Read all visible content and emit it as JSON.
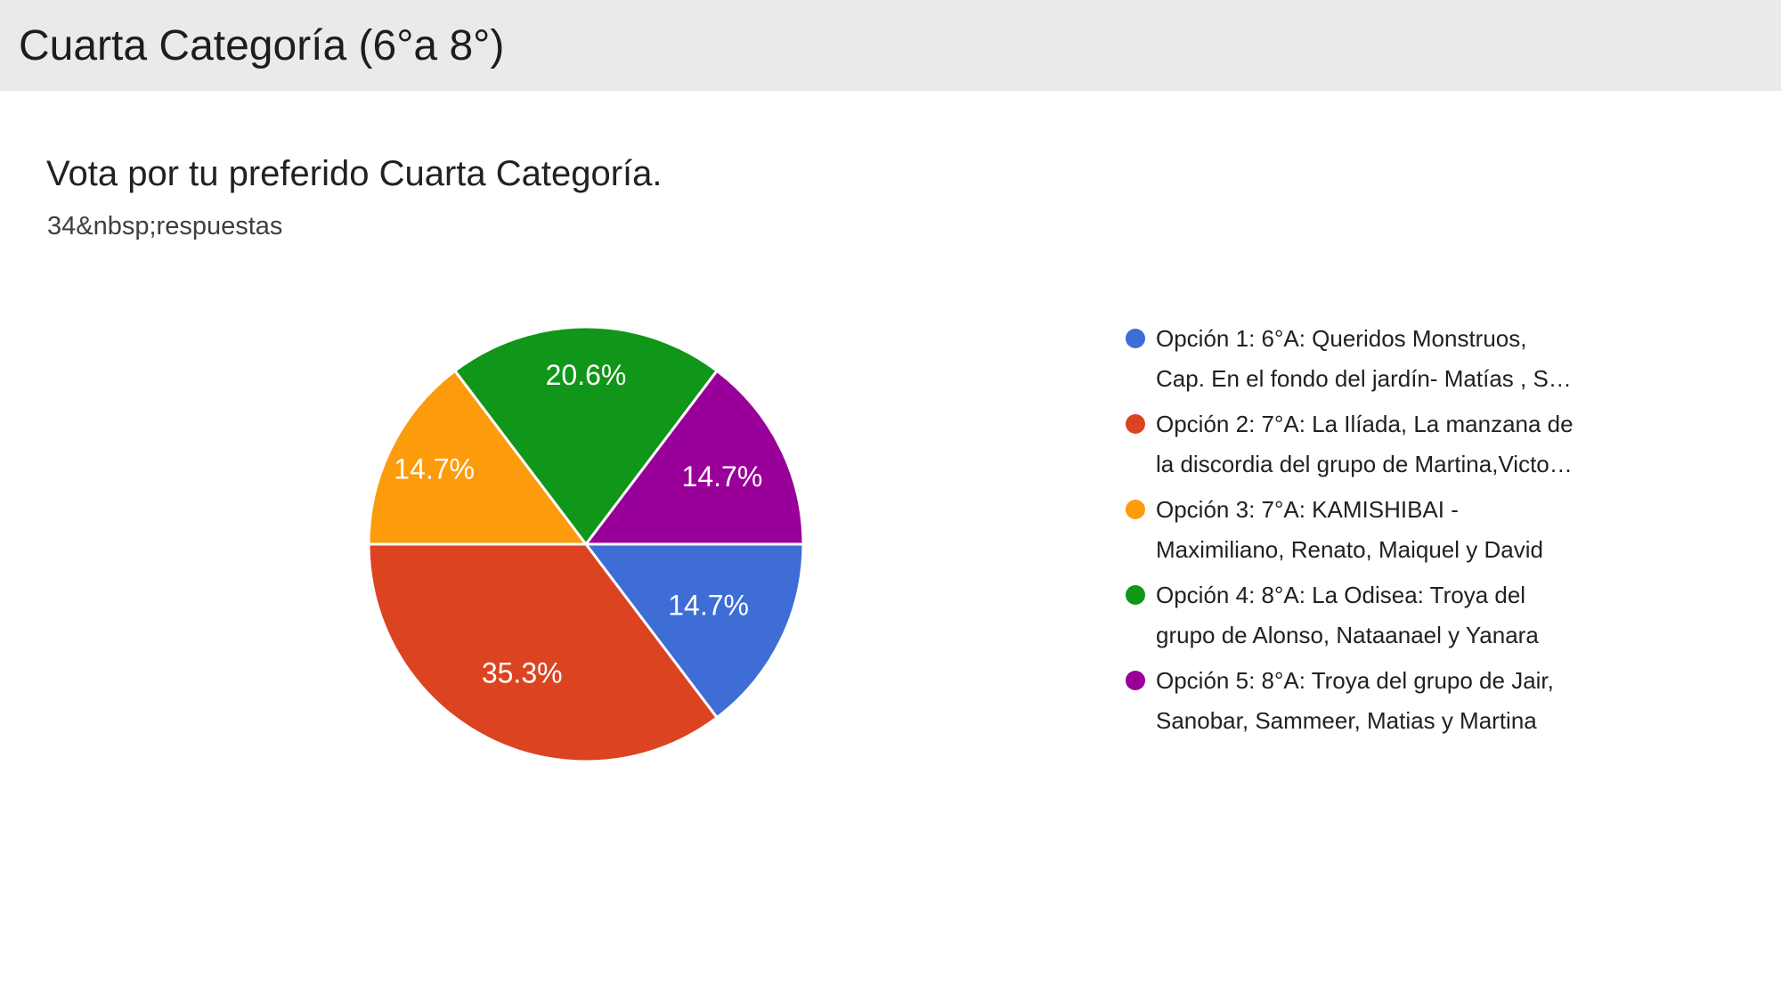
{
  "header": {
    "title": "Cuarta Categoría (6°a 8°)"
  },
  "question": {
    "title": "Vota por tu preferido Cuarta Categoría.",
    "responses_text": "34&nbsp;respuestas"
  },
  "chart_data": {
    "type": "pie",
    "title": "Vota por tu preferido Cuarta Categoría.",
    "responses_label": "34&nbsp;respuestas",
    "total_responses": 34,
    "legend_position": "right",
    "start_angle": "3-oclock, clockwise",
    "slices": [
      {
        "option": "Opción 1",
        "percent": 14.7,
        "percent_label": "14.7%",
        "color": "#3e6dd6",
        "legend_lines": [
          "Opción 1: 6°A: Queridos Monstruos,",
          "Cap. En el fondo del jardín- Matías , S…"
        ]
      },
      {
        "option": "Opción 2",
        "percent": 35.3,
        "percent_label": "35.3%",
        "color": "#dc4321",
        "legend_lines": [
          "Opción 2: 7°A: La Ilíada, La manzana de",
          "la discordia del grupo de Martina,Victo…"
        ]
      },
      {
        "option": "Opción 3",
        "percent": 14.7,
        "percent_label": "14.7%",
        "color": "#fc9b0b",
        "legend_lines": [
          "Opción 3: 7°A: KAMISHIBAI -",
          "Maximiliano, Renato, Maiquel y David"
        ]
      },
      {
        "option": "Opción 4",
        "percent": 20.6,
        "percent_label": "20.6%",
        "color": "#109618",
        "legend_lines": [
          "Opción 4: 8°A: La Odisea: Troya del",
          "grupo de Alonso, Nataanael y Yanara"
        ]
      },
      {
        "option": "Opción 5",
        "percent": 14.7,
        "percent_label": "14.7%",
        "color": "#990099",
        "legend_lines": [
          "Opción 5: 8°A: Troya del grupo de Jair,",
          "Sanobar, Sammeer, Matias y Martina"
        ]
      }
    ]
  }
}
